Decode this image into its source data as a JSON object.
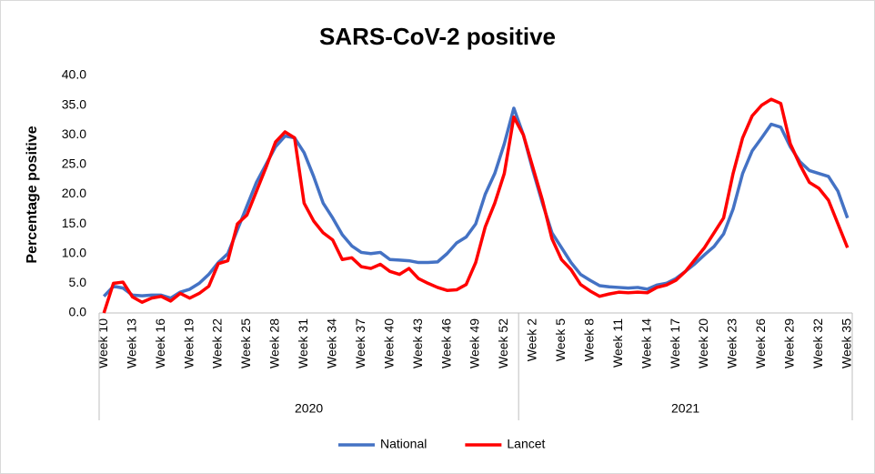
{
  "chart_data": {
    "type": "line",
    "title": "SARS-CoV-2 positive",
    "y_label": "Percentage positive",
    "categories": [
      "Week 10",
      null,
      null,
      "Week 13",
      null,
      null,
      "Week 16",
      null,
      null,
      "Week 19",
      null,
      null,
      "Week 22",
      null,
      null,
      "Week 25",
      null,
      null,
      "Week 28",
      null,
      null,
      "Week 31",
      null,
      null,
      "Week 34",
      null,
      null,
      "Week 37",
      null,
      null,
      "Week 40",
      null,
      null,
      "Week 43",
      null,
      null,
      "Week 46",
      null,
      null,
      "Week 49",
      null,
      null,
      "Week 52",
      null,
      null,
      "Week 2",
      null,
      null,
      "Week 5",
      null,
      null,
      "Week 8",
      null,
      null,
      "Week 11",
      null,
      null,
      "Week 14",
      null,
      null,
      "Week 17",
      null,
      null,
      "Week 20",
      null,
      null,
      "Week 23",
      null,
      null,
      "Week 26",
      null,
      null,
      "Week 29",
      null,
      null,
      "Week 32",
      null,
      null,
      "Week 35"
    ],
    "groups": [
      {
        "label": "2020",
        "size": 44
      },
      {
        "label": "2021",
        "size": 35
      }
    ],
    "series": [
      {
        "name": "National",
        "color": "#4472c4",
        "values": [
          2.8,
          4.5,
          4.2,
          3.0,
          2.9,
          3.0,
          3.0,
          2.5,
          3.5,
          4.0,
          5.0,
          6.5,
          8.5,
          10.0,
          14.0,
          18.0,
          22.0,
          25.0,
          28.0,
          29.8,
          29.5,
          27.0,
          23.0,
          18.5,
          16.0,
          13.2,
          11.3,
          10.2,
          10.0,
          10.2,
          9.0,
          8.9,
          8.8,
          8.5,
          8.5,
          8.6,
          10.0,
          11.8,
          12.8,
          15.0,
          20.0,
          23.5,
          28.5,
          34.5,
          30.0,
          24.0,
          18.5,
          13.5,
          11.0,
          8.5,
          6.5,
          5.5,
          4.6,
          4.4,
          4.3,
          4.2,
          4.3,
          4.0,
          4.7,
          5.0,
          5.8,
          7.0,
          8.3,
          9.8,
          11.2,
          13.3,
          17.5,
          23.5,
          27.3,
          29.5,
          31.8,
          31.3,
          28.0,
          25.5,
          24.0,
          23.5,
          23.0,
          20.5,
          16.0
        ]
      },
      {
        "name": "Lancet",
        "color": "#ff0000",
        "values": [
          0.0,
          5.0,
          5.2,
          2.7,
          1.8,
          2.5,
          2.8,
          2.0,
          3.3,
          2.5,
          3.3,
          4.5,
          8.3,
          8.8,
          15.0,
          16.5,
          20.5,
          24.5,
          28.8,
          30.5,
          29.5,
          18.5,
          15.5,
          13.5,
          12.3,
          9.0,
          9.3,
          7.8,
          7.5,
          8.2,
          7.0,
          6.5,
          7.5,
          5.8,
          5.0,
          4.3,
          3.8,
          3.9,
          4.8,
          8.5,
          14.5,
          18.5,
          23.5,
          33.0,
          30.0,
          24.5,
          19.0,
          12.5,
          9.0,
          7.3,
          4.8,
          3.7,
          2.8,
          3.2,
          3.5,
          3.4,
          3.5,
          3.4,
          4.3,
          4.7,
          5.5,
          7.0,
          9.0,
          11.0,
          13.5,
          16.0,
          23.5,
          29.5,
          33.2,
          35.0,
          36.0,
          35.3,
          28.5,
          25.0,
          22.0,
          21.0,
          19.0,
          15.0,
          11.0
        ]
      }
    ],
    "ylim": [
      0,
      40
    ],
    "yticks": [
      {
        "value": 0,
        "label": "0.0"
      },
      {
        "value": 5,
        "label": "5.0"
      },
      {
        "value": 10,
        "label": "10.0"
      },
      {
        "value": 15,
        "label": "15.0"
      },
      {
        "value": 20,
        "label": "20.0"
      },
      {
        "value": 25,
        "label": "25.0"
      },
      {
        "value": 30,
        "label": "30.0"
      },
      {
        "value": 35,
        "label": "35.0"
      },
      {
        "value": 40,
        "label": "40.0"
      }
    ],
    "grid": false,
    "legend": "bottom"
  }
}
